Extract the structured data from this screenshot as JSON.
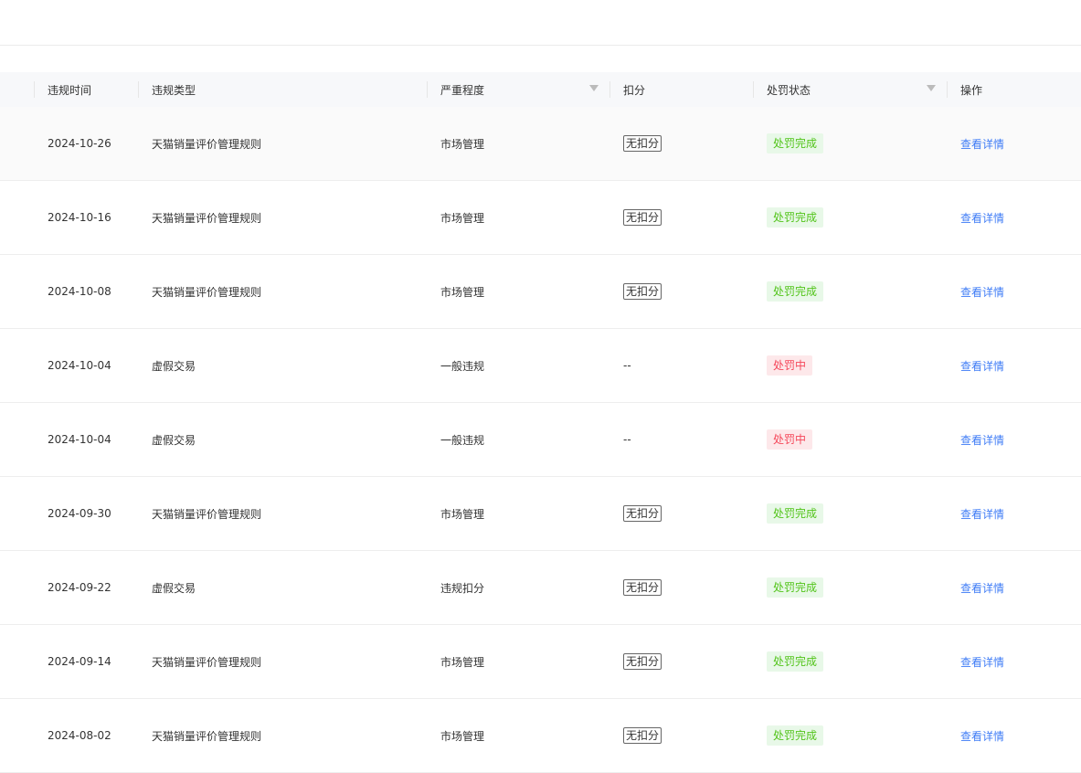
{
  "colors": {
    "link": "#3f7cf6",
    "done_text": "#52c41a",
    "done_bg": "#e8f8e8",
    "ing_text": "#f5475a",
    "ing_bg": "#fde8ea"
  },
  "columns": [
    "违规时间",
    "违规类型",
    "严重程度",
    "扣分",
    "处罚状态",
    "操作"
  ],
  "rows": [
    {
      "date": "2024-10-26",
      "type": "天猫销量评价管理规则",
      "severity": "市场管理",
      "points": "无扣分",
      "status": "处罚完成",
      "action": "查看详情"
    },
    {
      "date": "2024-10-16",
      "type": "天猫销量评价管理规则",
      "severity": "市场管理",
      "points": "无扣分",
      "status": "处罚完成",
      "action": "查看详情"
    },
    {
      "date": "2024-10-08",
      "type": "天猫销量评价管理规则",
      "severity": "市场管理",
      "points": "无扣分",
      "status": "处罚完成",
      "action": "查看详情"
    },
    {
      "date": "2024-10-04",
      "type": "虚假交易",
      "severity": "一般违规",
      "points": "--",
      "status": "处罚中",
      "action": "查看详情"
    },
    {
      "date": "2024-10-04",
      "type": "虚假交易",
      "severity": "一般违规",
      "points": "--",
      "status": "处罚中",
      "action": "查看详情"
    },
    {
      "date": "2024-09-30",
      "type": "天猫销量评价管理规则",
      "severity": "市场管理",
      "points": "无扣分",
      "status": "处罚完成",
      "action": "查看详情"
    },
    {
      "date": "2024-09-22",
      "type": "虚假交易",
      "severity": "违规扣分",
      "points": "无扣分",
      "status": "处罚完成",
      "action": "查看详情"
    },
    {
      "date": "2024-09-14",
      "type": "天猫销量评价管理规则",
      "severity": "市场管理",
      "points": "无扣分",
      "status": "处罚完成",
      "action": "查看详情"
    },
    {
      "date": "2024-08-02",
      "type": "天猫销量评价管理规则",
      "severity": "市场管理",
      "points": "无扣分",
      "status": "处罚完成",
      "action": "查看详情"
    }
  ]
}
